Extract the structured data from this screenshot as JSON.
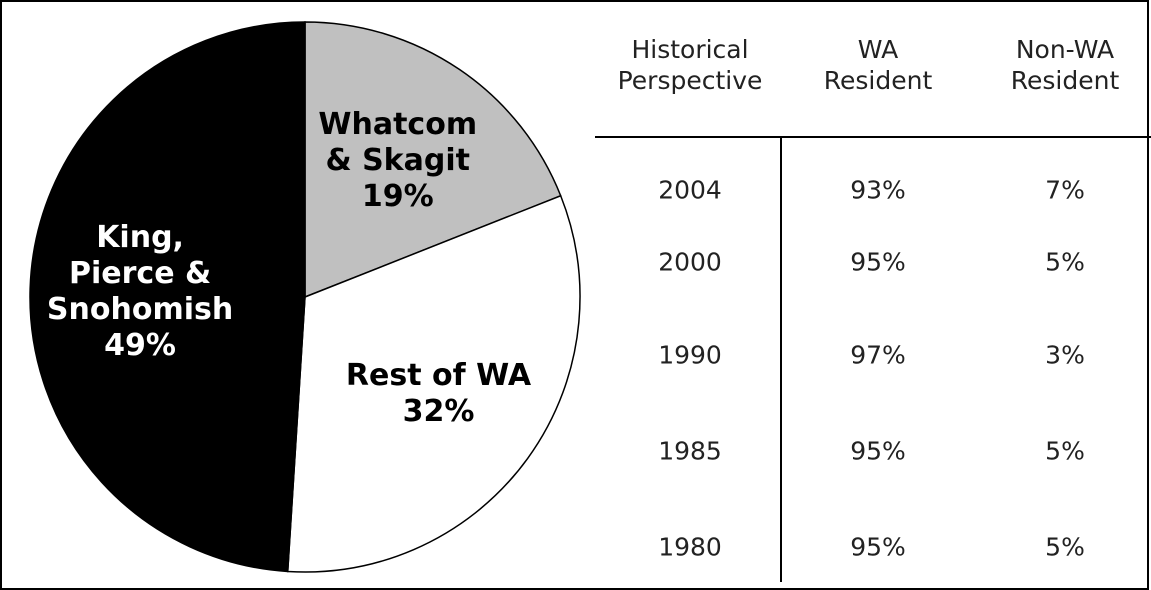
{
  "chart_data": {
    "type": "pie",
    "categories": [
      "Whatcom\n& Skagit",
      "Rest of WA",
      "King,\nPierce &\nSnohomish"
    ],
    "values": [
      19,
      32,
      49
    ],
    "value_labels": [
      "19%",
      "32%",
      "49%"
    ],
    "colors": [
      "#c0c0c0",
      "#ffffff",
      "#000000"
    ]
  },
  "table": {
    "header": [
      "Historical\nPerspective",
      "WA\nResident",
      "Non-WA\nResident"
    ],
    "rows": [
      [
        "2004",
        "93%",
        "7%"
      ],
      [
        "2000",
        "95%",
        "5%"
      ],
      [
        "1990",
        "97%",
        "3%"
      ],
      [
        "1985",
        "95%",
        "5%"
      ],
      [
        "1980",
        "95%",
        "5%"
      ]
    ]
  }
}
